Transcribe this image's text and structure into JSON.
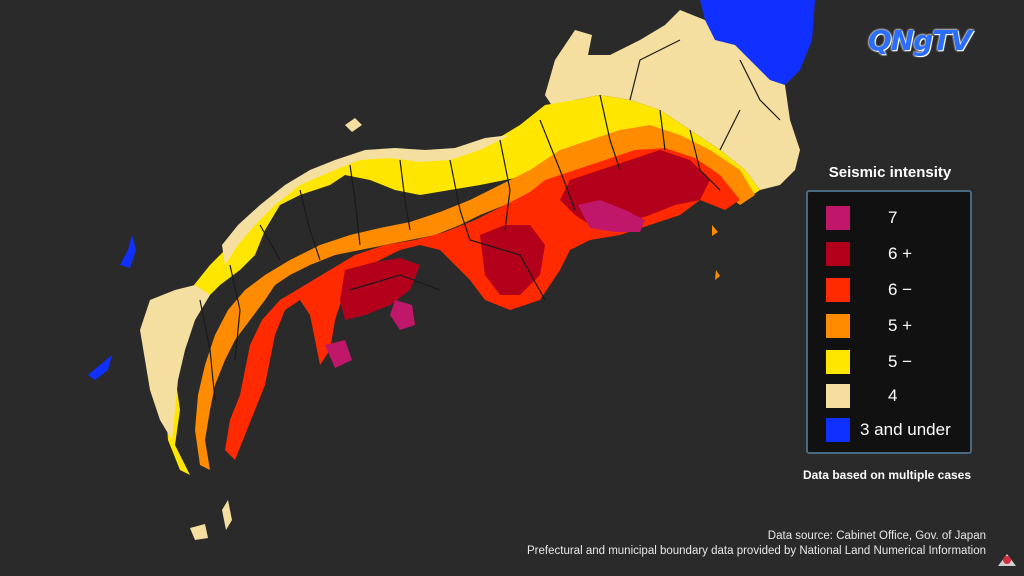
{
  "logo": {
    "text": "QNgTV"
  },
  "legend": {
    "title": "Seismic intensity",
    "items": [
      {
        "label": "7",
        "color": "#c0176b"
      },
      {
        "label": "6 +",
        "color": "#b3001b"
      },
      {
        "label": "6 −",
        "color": "#ff2a00"
      },
      {
        "label": "5 +",
        "color": "#ff8c00"
      },
      {
        "label": "5 −",
        "color": "#ffe600"
      },
      {
        "label": "4",
        "color": "#f5dfa0"
      },
      {
        "label": "3 and under",
        "color": "#1030ff"
      }
    ],
    "note": "Data based on multiple cases"
  },
  "source": {
    "line1": "Data source: Cabinet Office, Gov. of Japan",
    "line2": "Prefectural and municipal boundary data provided by National Land Numerical Information"
  },
  "colors": {
    "background": "#2a2a2a",
    "boundary": "#1a1a1a"
  }
}
